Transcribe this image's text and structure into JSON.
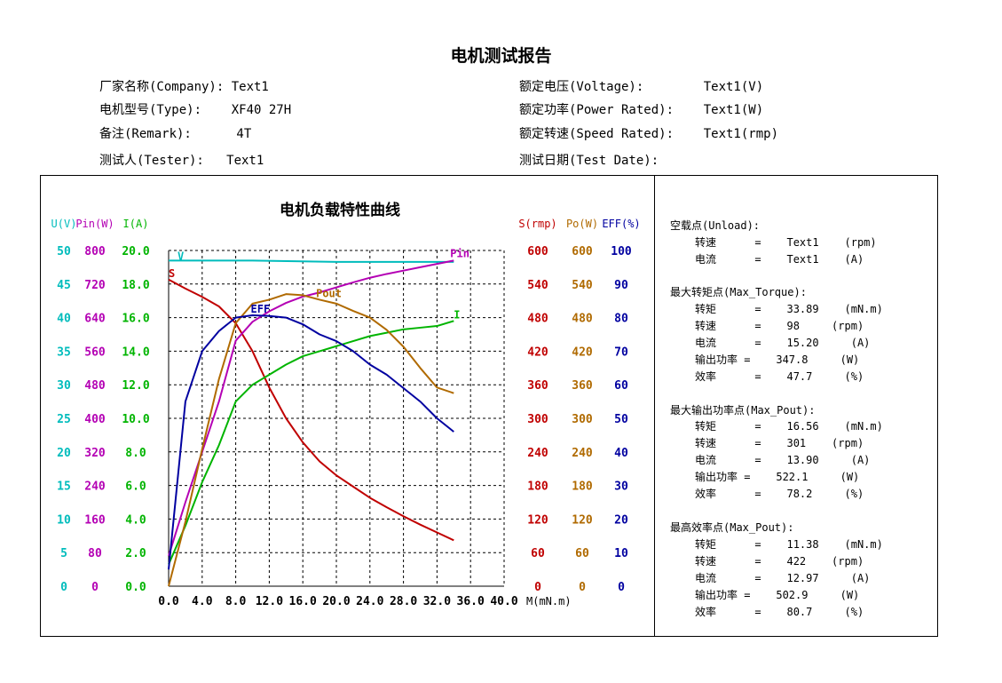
{
  "report_title": "电机测试报告",
  "info": {
    "company": "厂家名称(Company): Text1",
    "type": "电机型号(Type):    XF40 27H",
    "remark": "备注(Remark):      4T",
    "tester": "测试人(Tester):   Text1",
    "voltage": "额定电压(Voltage):        Text1(V)",
    "power": "额定功率(Power Rated):    Text1(W)",
    "speed": "额定转速(Speed Rated):    Text1(rmp)",
    "date": "测试日期(Test Date):"
  },
  "colors": {
    "U": "#00bcbc",
    "Pin": "#b400b4",
    "I": "#00b400",
    "S": "#c00000",
    "Po": "#b06a00",
    "EFF": "#0000a0"
  },
  "chart_data": {
    "type": "line",
    "title": "电机负载特性曲线",
    "xlabel": "M(mN.m)",
    "xlim": [
      0,
      40
    ],
    "x_ticks": [
      "0.0",
      "4.0",
      "8.0",
      "12.0",
      "16.0",
      "20.0",
      "24.0",
      "28.0",
      "32.0",
      "36.0",
      "40.0"
    ],
    "left_axes": [
      {
        "key": "U",
        "header": "U(V)",
        "ticks": [
          "50",
          "45",
          "40",
          "35",
          "30",
          "25",
          "20",
          "15",
          "10",
          "5",
          "0"
        ]
      },
      {
        "key": "Pin",
        "header": "Pin(W)",
        "ticks": [
          "800",
          "720",
          "640",
          "560",
          "480",
          "400",
          "320",
          "240",
          "160",
          "80",
          "0"
        ]
      },
      {
        "key": "I",
        "header": "I(A)",
        "ticks": [
          "20.0",
          "18.0",
          "16.0",
          "14.0",
          "12.0",
          "10.0",
          "8.0",
          "6.0",
          "4.0",
          "2.0",
          "0.0"
        ]
      }
    ],
    "right_axes": [
      {
        "key": "S",
        "header": "S(rmp)",
        "ticks": [
          "600",
          "540",
          "480",
          "420",
          "360",
          "300",
          "240",
          "180",
          "120",
          "60",
          "0"
        ]
      },
      {
        "key": "Po",
        "header": "Po(W)",
        "ticks": [
          "600",
          "540",
          "480",
          "420",
          "360",
          "300",
          "240",
          "180",
          "120",
          "60",
          "0"
        ]
      },
      {
        "key": "EFF",
        "header": "EFF(%)",
        "ticks": [
          "100",
          "90",
          "80",
          "70",
          "60",
          "50",
          "40",
          "30",
          "20",
          "10",
          "0"
        ]
      }
    ],
    "series": [
      {
        "name": "V",
        "axis": "U",
        "ymax": 50,
        "x": [
          0,
          10,
          20,
          30,
          34
        ],
        "y": [
          48.5,
          48.5,
          48.3,
          48.3,
          48.3
        ]
      },
      {
        "name": "S",
        "axis": "S",
        "ymax": 600,
        "x": [
          0,
          2,
          4,
          6,
          8,
          10,
          12,
          14,
          16,
          18,
          20,
          22,
          24,
          26,
          28,
          30,
          32,
          34
        ],
        "y": [
          548,
          532,
          517,
          500,
          470,
          420,
          355,
          300,
          257,
          223,
          198,
          178,
          158,
          141,
          125,
          110,
          96,
          82
        ]
      },
      {
        "name": "Pin",
        "axis": "Pin",
        "ymax": 800,
        "x": [
          0,
          2,
          4,
          6,
          8,
          10,
          12,
          14,
          16,
          18,
          20,
          22,
          24,
          26,
          28,
          30,
          32,
          34
        ],
        "y": [
          72,
          200,
          320,
          440,
          585,
          630,
          655,
          675,
          690,
          700,
          712,
          724,
          735,
          744,
          752,
          760,
          768,
          776
        ]
      },
      {
        "name": "I",
        "axis": "I",
        "ymax": 20,
        "x": [
          0,
          2,
          4,
          6,
          8,
          10,
          12,
          14,
          16,
          18,
          20,
          22,
          24,
          26,
          28,
          30,
          32,
          34
        ],
        "y": [
          1.3,
          3.6,
          6.2,
          8.4,
          11.0,
          12.0,
          12.6,
          13.2,
          13.7,
          14.0,
          14.3,
          14.6,
          14.9,
          15.1,
          15.3,
          15.4,
          15.5,
          15.8
        ]
      },
      {
        "name": "Pout",
        "axis": "Po",
        "ymax": 600,
        "x": [
          0,
          2,
          4,
          6,
          8,
          10,
          12,
          14,
          16,
          18,
          20,
          22,
          24,
          26,
          28,
          30,
          32,
          34
        ],
        "y": [
          0,
          115,
          245,
          370,
          470,
          505,
          512,
          522,
          520,
          512,
          505,
          492,
          480,
          458,
          428,
          390,
          355,
          345
        ]
      },
      {
        "name": "EFF",
        "axis": "EFF",
        "ymax": 100,
        "x": [
          0,
          2,
          4,
          6,
          8,
          10,
          12,
          14,
          16,
          18,
          20,
          22,
          24,
          26,
          28,
          30,
          32,
          34
        ],
        "y": [
          5,
          55,
          70,
          76,
          80,
          80.7,
          80.5,
          80,
          78,
          75,
          73,
          70,
          66,
          63,
          59,
          55,
          50,
          46
        ]
      }
    ]
  },
  "right_panel": {
    "unload_title": "空载点(Unload):",
    "unload_speed": "转速      =    Text1    (rpm)",
    "unload_current": "电流      =    Text1    (A)",
    "maxtorque_title": "最大转矩点(Max_Torque):",
    "maxtorque_torque": "转矩      =    33.89    (mN.m)",
    "maxtorque_speed": "转速      =    98     (rpm)",
    "maxtorque_current": "电流      =    15.20     (A)",
    "maxtorque_power": "输出功率 =    347.8     (W)",
    "maxtorque_eff": "效率      =    47.7     (%)",
    "maxpout_title": "最大输出功率点(Max_Pout):",
    "maxpout_torque": "转矩      =    16.56    (mN.m)",
    "maxpout_speed": "转速      =    301    (rpm)",
    "maxpout_current": "电流      =    13.90     (A)",
    "maxpout_power": "输出功率 =    522.1     (W)",
    "maxpout_eff": "效率      =    78.2     (%)",
    "maxeff_title": "最高效率点(Max_Pout):",
    "maxeff_torque": "转矩      =    11.38    (mN.m)",
    "maxeff_speed": "转速      =    422    (rpm)",
    "maxeff_current": "电流      =    12.97     (A)",
    "maxeff_power": "输出功率 =    502.9     (W)",
    "maxeff_eff": "效率      =    80.7     (%)"
  }
}
